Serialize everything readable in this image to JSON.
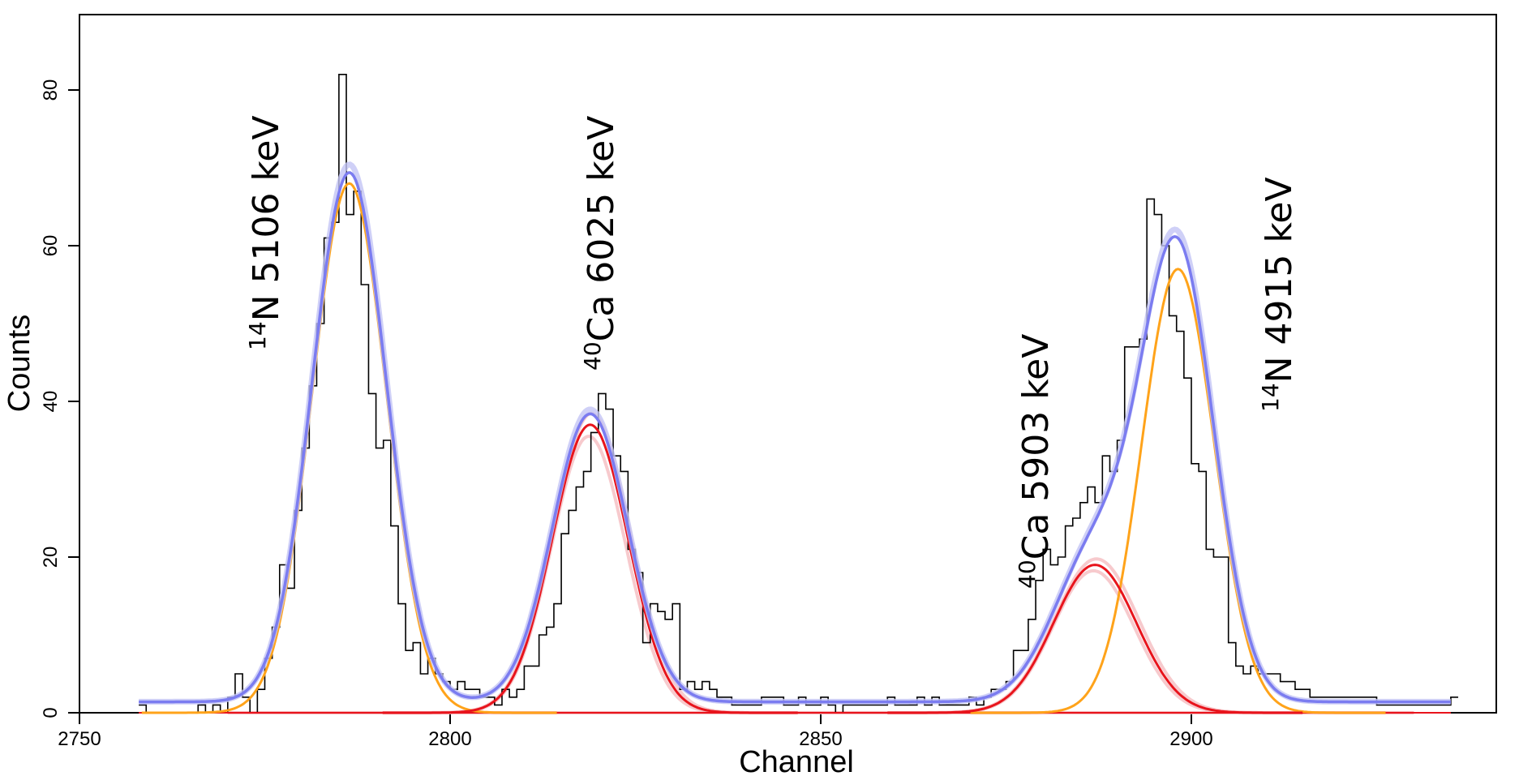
{
  "chart_data": {
    "type": "line",
    "xlabel": "Channel",
    "ylabel": "Counts",
    "xlim": [
      2750,
      2940
    ],
    "ylim": [
      0,
      85
    ],
    "xticks": [
      "2750",
      "2800",
      "2850",
      "2900"
    ],
    "yticks": [
      "0",
      "20",
      "40",
      "60",
      "80"
    ],
    "grid": false,
    "legend": "none",
    "colors": {
      "histogram": "#000000",
      "orange_fit": "#ffa31a",
      "red_fit": "#e8141c",
      "total_fit": "#7b7cf0",
      "total_fit_band": "#c3c4f5",
      "red_band": "#f4b4b8"
    },
    "peak_labels": [
      {
        "sup": "14",
        "text": "N 5106 keV"
      },
      {
        "sup": "40",
        "text": "Ca 6025 keV"
      },
      {
        "sup": "40",
        "text": "Ca 5903 keV"
      },
      {
        "sup": "14",
        "text": "N 4915 keV"
      }
    ],
    "histogram": {
      "start": 2758,
      "bin_width": 1,
      "counts": [
        1,
        0,
        0,
        0,
        0,
        0,
        0,
        0,
        1,
        0,
        1,
        0,
        2,
        5,
        2,
        0,
        3,
        7,
        11,
        19,
        16,
        26,
        34,
        42,
        50,
        61,
        63,
        82,
        64,
        67,
        55,
        41,
        34,
        35,
        24,
        14,
        8,
        9,
        5,
        7,
        5,
        4,
        3,
        4,
        3,
        3,
        2,
        2,
        1,
        3,
        2,
        3,
        6,
        6,
        10,
        11,
        14,
        23,
        26,
        29,
        31,
        36,
        41,
        39,
        33,
        31,
        21,
        18,
        9,
        14,
        13,
        12,
        14,
        3,
        4,
        3,
        4,
        3,
        2,
        2,
        1,
        1,
        1,
        1,
        2,
        2,
        2,
        1,
        1,
        2,
        1,
        1,
        2,
        1,
        0,
        1,
        1,
        1,
        1,
        1,
        1,
        2,
        1,
        1,
        1,
        2,
        1,
        2,
        1,
        1,
        1,
        1,
        2,
        1,
        2,
        3,
        3,
        4,
        8,
        8,
        12,
        17,
        21,
        19,
        20,
        24,
        25,
        27,
        29,
        27,
        33,
        31,
        35,
        47,
        47,
        48,
        66,
        64,
        60,
        51,
        49,
        43,
        32,
        31,
        21,
        20,
        20,
        9,
        6,
        5,
        6,
        5,
        5,
        5,
        4,
        4,
        3,
        3,
        2,
        2,
        2,
        2,
        2,
        2,
        2,
        2,
        2,
        1,
        1,
        1,
        1,
        1,
        1,
        1,
        1,
        1,
        1,
        2
      ]
    },
    "fit_components": {
      "orange_peaks": [
        {
          "center": 2786.4,
          "sigma": 5.0,
          "amplitude": 68
        },
        {
          "center": 2898.2,
          "sigma": 4.9,
          "amplitude": 57
        }
      ],
      "red_peaks": [
        {
          "center": 2818.9,
          "sigma": 5.1,
          "amplitude": 37
        },
        {
          "center": 2887.0,
          "sigma": 5.6,
          "amplitude": 19
        }
      ],
      "background": 1.4
    }
  }
}
